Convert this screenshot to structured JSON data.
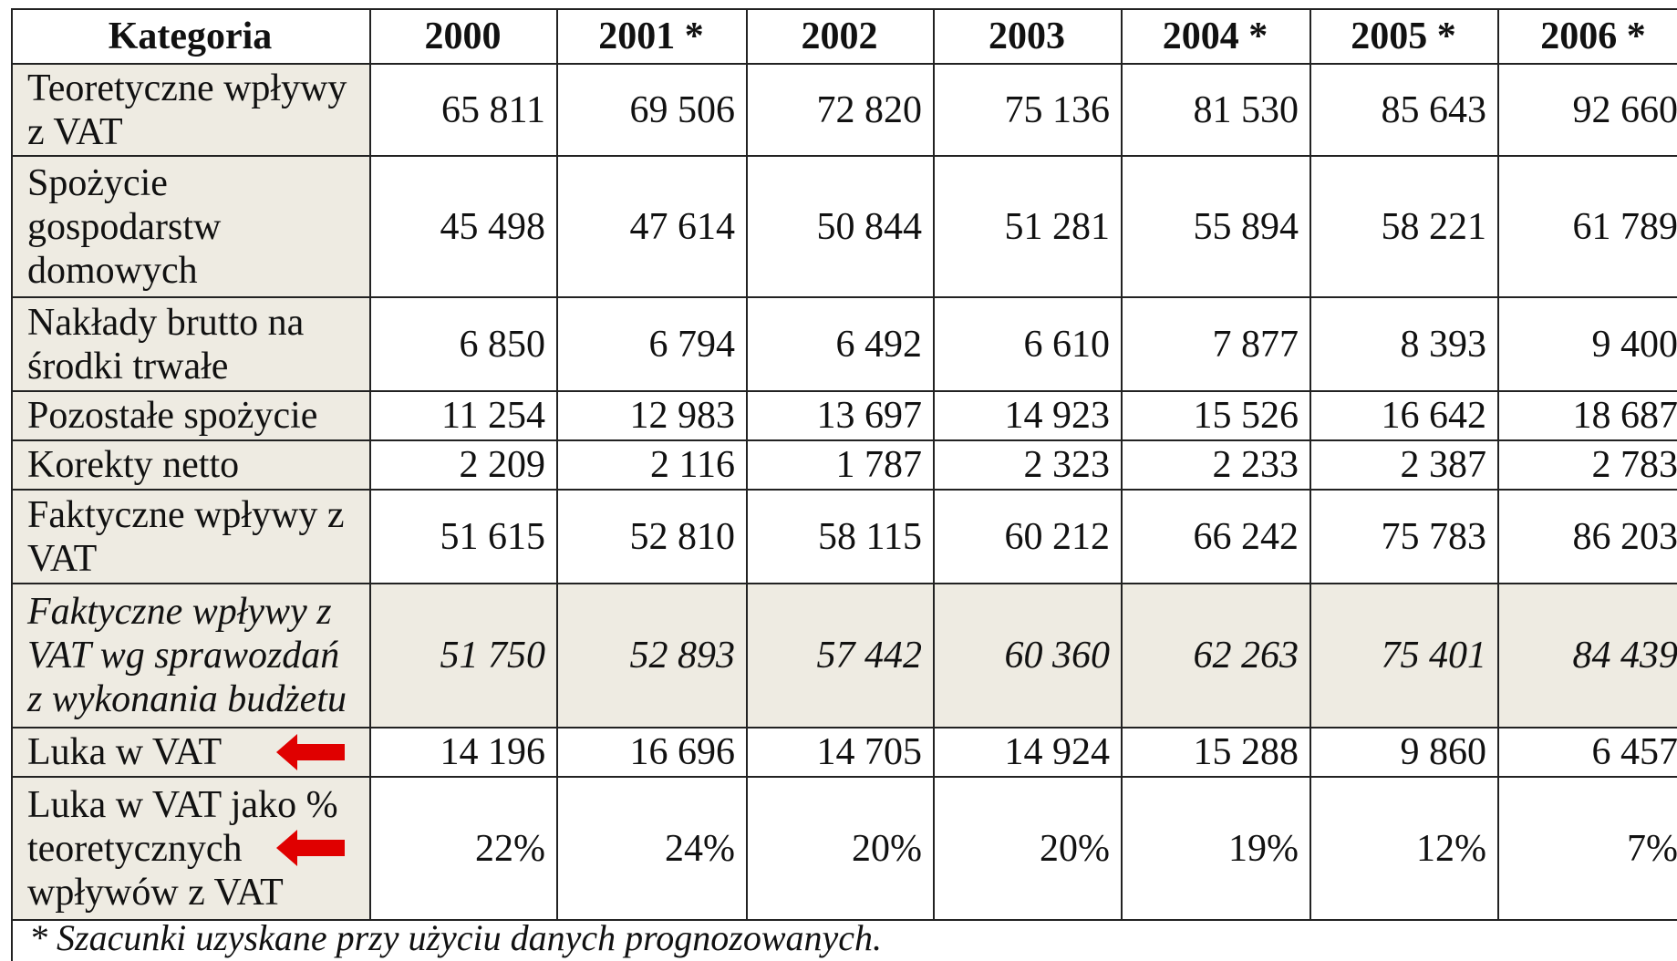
{
  "table": {
    "header": [
      "Kategoria",
      "2000",
      "2001 *",
      "2002",
      "2003",
      "2004 *",
      "2005 *",
      "2006 *"
    ],
    "rows": [
      [
        "Teoretyczne wpływy z VAT",
        "65 811",
        "69 506",
        "72 820",
        "75 136",
        "81 530",
        "85 643",
        "92 660"
      ],
      [
        "Spożycie gospodarstw domowych",
        "45 498",
        "47 614",
        "50 844",
        "51 281",
        "55 894",
        "58 221",
        "61 789"
      ],
      [
        "Nakłady brutto na środki trwałe",
        "6 850",
        "6 794",
        "6 492",
        "6 610",
        "7 877",
        "8 393",
        "9 400"
      ],
      [
        "Pozostałe spożycie",
        "11 254",
        "12 983",
        "13 697",
        "14 923",
        "15 526",
        "16 642",
        "18 687"
      ],
      [
        "Korekty netto",
        "2 209",
        "2 116",
        "1 787",
        "2 323",
        "2 233",
        "2 387",
        "2 783"
      ],
      [
        "Faktyczne wpływy z VAT",
        "51 615",
        "52 810",
        "58 115",
        "60 212",
        "66 242",
        "75 783",
        "86 203"
      ],
      [
        "Faktyczne wpływy z VAT wg sprawozdań z wykonania budżetu",
        "51 750",
        "52 893",
        "57 442",
        "60 360",
        "62 263",
        "75 401",
        "84 439"
      ],
      [
        "Luka w VAT",
        "14 196",
        "16 696",
        "14 705",
        "14 924",
        "15 288",
        "9 860",
        "6 457"
      ],
      [
        "Luka w VAT jako % teoretycznych wpływów z VAT",
        "22%",
        "24%",
        "20%",
        "20%",
        "19%",
        "12%",
        "7%"
      ]
    ],
    "footnote": "* Szacunki uzyskane przy użyciu danych prognozowanych."
  }
}
